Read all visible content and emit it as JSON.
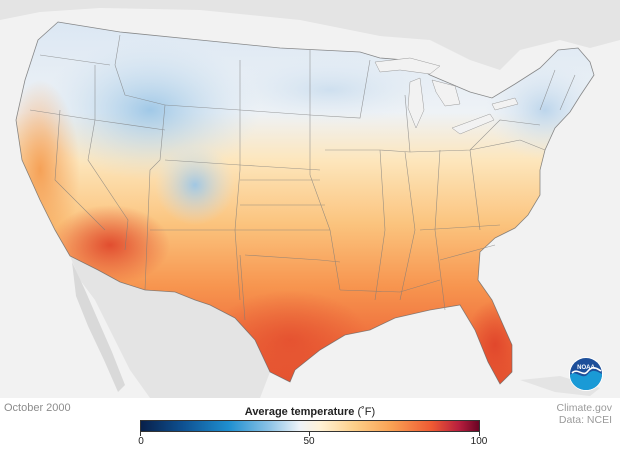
{
  "date": "October 2000",
  "legend": {
    "title": "Average temperature",
    "unit": "(˚F)",
    "ticks": [
      "0",
      "50",
      "100"
    ],
    "min": 0,
    "mid": 50,
    "max": 100,
    "colors": [
      "#08204a",
      "#1f8fd0",
      "#eef3f8",
      "#fdd08a",
      "#ef5a33",
      "#6a0424"
    ]
  },
  "credit": {
    "line1": "Climate.gov",
    "line2": "Data: NCEI"
  },
  "logo": {
    "text": "NOAA"
  }
}
